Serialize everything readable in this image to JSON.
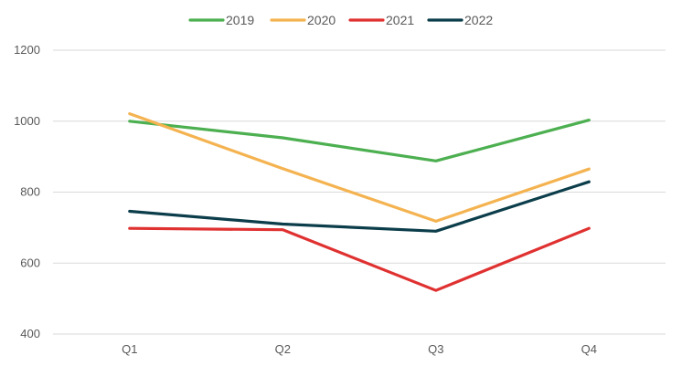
{
  "chart_data": {
    "type": "line",
    "title": "",
    "xlabel": "",
    "ylabel": "",
    "categories": [
      "Q1",
      "Q2",
      "Q3",
      "Q4"
    ],
    "ylim": [
      400,
      1200
    ],
    "yticks": [
      400,
      600,
      800,
      1000,
      1200
    ],
    "grid": true,
    "legend_position": "top",
    "series": [
      {
        "name": "2019",
        "color": "#4caf50",
        "values": [
          1000,
          953,
          888,
          1003
        ]
      },
      {
        "name": "2020",
        "color": "#f4b350",
        "values": [
          1021,
          866,
          718,
          865
        ]
      },
      {
        "name": "2021",
        "color": "#e03131",
        "values": [
          698,
          694,
          523,
          698
        ]
      },
      {
        "name": "2022",
        "color": "#0b3d4a",
        "values": [
          746,
          710,
          690,
          829
        ]
      }
    ]
  }
}
